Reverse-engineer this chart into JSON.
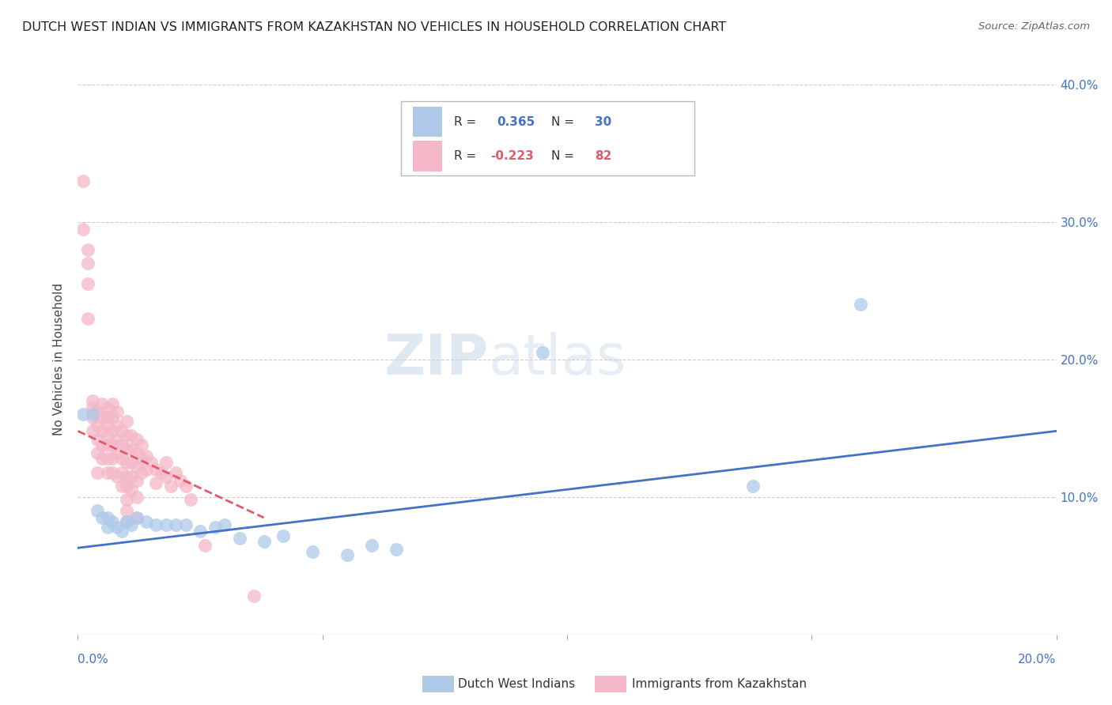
{
  "title": "DUTCH WEST INDIAN VS IMMIGRANTS FROM KAZAKHSTAN NO VEHICLES IN HOUSEHOLD CORRELATION CHART",
  "source": "Source: ZipAtlas.com",
  "ylabel": "No Vehicles in Household",
  "watermark": "ZIPatlas",
  "blue_color": "#aec9e8",
  "pink_color": "#f4b8c8",
  "blue_line_color": "#4472c4",
  "pink_line_color": "#e05a6a",
  "background_color": "#ffffff",
  "xlim": [
    0.0,
    0.2
  ],
  "ylim": [
    0.0,
    0.4
  ],
  "blue_points_x": [
    0.001,
    0.003,
    0.004,
    0.005,
    0.006,
    0.006,
    0.007,
    0.008,
    0.009,
    0.01,
    0.011,
    0.012,
    0.014,
    0.016,
    0.018,
    0.02,
    0.022,
    0.025,
    0.028,
    0.03,
    0.033,
    0.038,
    0.042,
    0.048,
    0.055,
    0.06,
    0.065,
    0.095,
    0.138,
    0.16
  ],
  "blue_points_y": [
    0.16,
    0.16,
    0.09,
    0.085,
    0.085,
    0.078,
    0.082,
    0.078,
    0.075,
    0.082,
    0.08,
    0.085,
    0.082,
    0.08,
    0.08,
    0.08,
    0.08,
    0.075,
    0.078,
    0.08,
    0.07,
    0.068,
    0.072,
    0.06,
    0.058,
    0.065,
    0.062,
    0.205,
    0.108,
    0.24
  ],
  "pink_points_x": [
    0.001,
    0.001,
    0.002,
    0.002,
    0.002,
    0.002,
    0.003,
    0.003,
    0.003,
    0.003,
    0.004,
    0.004,
    0.004,
    0.004,
    0.004,
    0.005,
    0.005,
    0.005,
    0.005,
    0.005,
    0.006,
    0.006,
    0.006,
    0.006,
    0.006,
    0.006,
    0.006,
    0.007,
    0.007,
    0.007,
    0.007,
    0.007,
    0.007,
    0.008,
    0.008,
    0.008,
    0.008,
    0.008,
    0.009,
    0.009,
    0.009,
    0.009,
    0.009,
    0.01,
    0.01,
    0.01,
    0.01,
    0.01,
    0.01,
    0.01,
    0.01,
    0.01,
    0.011,
    0.011,
    0.011,
    0.011,
    0.011,
    0.012,
    0.012,
    0.012,
    0.012,
    0.012,
    0.012,
    0.013,
    0.013,
    0.013,
    0.014,
    0.014,
    0.015,
    0.016,
    0.016,
    0.017,
    0.018,
    0.018,
    0.019,
    0.02,
    0.021,
    0.022,
    0.023,
    0.026,
    0.036
  ],
  "pink_points_y": [
    0.33,
    0.295,
    0.28,
    0.27,
    0.255,
    0.23,
    0.17,
    0.165,
    0.158,
    0.148,
    0.162,
    0.152,
    0.142,
    0.132,
    0.118,
    0.168,
    0.158,
    0.148,
    0.138,
    0.128,
    0.165,
    0.158,
    0.152,
    0.145,
    0.138,
    0.128,
    0.118,
    0.168,
    0.158,
    0.148,
    0.138,
    0.128,
    0.118,
    0.162,
    0.152,
    0.142,
    0.132,
    0.115,
    0.148,
    0.138,
    0.128,
    0.118,
    0.108,
    0.155,
    0.145,
    0.135,
    0.125,
    0.115,
    0.108,
    0.098,
    0.09,
    0.082,
    0.145,
    0.135,
    0.125,
    0.115,
    0.105,
    0.142,
    0.132,
    0.122,
    0.112,
    0.1,
    0.085,
    0.138,
    0.128,
    0.118,
    0.13,
    0.12,
    0.125,
    0.12,
    0.11,
    0.118,
    0.125,
    0.115,
    0.108,
    0.118,
    0.112,
    0.108,
    0.098,
    0.065,
    0.028
  ],
  "blue_trend_x": [
    0.0,
    0.2
  ],
  "blue_trend_y": [
    0.063,
    0.148
  ],
  "pink_trend_x": [
    0.0,
    0.038
  ],
  "pink_trend_y": [
    0.148,
    0.085
  ]
}
